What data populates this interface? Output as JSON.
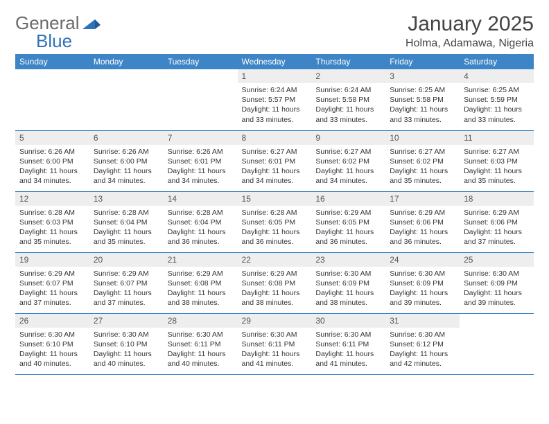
{
  "logo": {
    "part1": "General",
    "part2": "Blue"
  },
  "title": "January 2025",
  "location": "Holma, Adamawa, Nigeria",
  "colors": {
    "header_bg": "#3d85c6",
    "header_text": "#ffffff",
    "daynum_bg": "#eeeeee",
    "row_border": "#3d85c6",
    "body_text": "#333333",
    "logo_blue": "#2f72b8"
  },
  "day_headers": [
    "Sunday",
    "Monday",
    "Tuesday",
    "Wednesday",
    "Thursday",
    "Friday",
    "Saturday"
  ],
  "weeks": [
    [
      null,
      null,
      null,
      {
        "n": "1",
        "sr": "Sunrise: 6:24 AM",
        "ss": "Sunset: 5:57 PM",
        "d1": "Daylight: 11 hours",
        "d2": "and 33 minutes."
      },
      {
        "n": "2",
        "sr": "Sunrise: 6:24 AM",
        "ss": "Sunset: 5:58 PM",
        "d1": "Daylight: 11 hours",
        "d2": "and 33 minutes."
      },
      {
        "n": "3",
        "sr": "Sunrise: 6:25 AM",
        "ss": "Sunset: 5:58 PM",
        "d1": "Daylight: 11 hours",
        "d2": "and 33 minutes."
      },
      {
        "n": "4",
        "sr": "Sunrise: 6:25 AM",
        "ss": "Sunset: 5:59 PM",
        "d1": "Daylight: 11 hours",
        "d2": "and 33 minutes."
      }
    ],
    [
      {
        "n": "5",
        "sr": "Sunrise: 6:26 AM",
        "ss": "Sunset: 6:00 PM",
        "d1": "Daylight: 11 hours",
        "d2": "and 34 minutes."
      },
      {
        "n": "6",
        "sr": "Sunrise: 6:26 AM",
        "ss": "Sunset: 6:00 PM",
        "d1": "Daylight: 11 hours",
        "d2": "and 34 minutes."
      },
      {
        "n": "7",
        "sr": "Sunrise: 6:26 AM",
        "ss": "Sunset: 6:01 PM",
        "d1": "Daylight: 11 hours",
        "d2": "and 34 minutes."
      },
      {
        "n": "8",
        "sr": "Sunrise: 6:27 AM",
        "ss": "Sunset: 6:01 PM",
        "d1": "Daylight: 11 hours",
        "d2": "and 34 minutes."
      },
      {
        "n": "9",
        "sr": "Sunrise: 6:27 AM",
        "ss": "Sunset: 6:02 PM",
        "d1": "Daylight: 11 hours",
        "d2": "and 34 minutes."
      },
      {
        "n": "10",
        "sr": "Sunrise: 6:27 AM",
        "ss": "Sunset: 6:02 PM",
        "d1": "Daylight: 11 hours",
        "d2": "and 35 minutes."
      },
      {
        "n": "11",
        "sr": "Sunrise: 6:27 AM",
        "ss": "Sunset: 6:03 PM",
        "d1": "Daylight: 11 hours",
        "d2": "and 35 minutes."
      }
    ],
    [
      {
        "n": "12",
        "sr": "Sunrise: 6:28 AM",
        "ss": "Sunset: 6:03 PM",
        "d1": "Daylight: 11 hours",
        "d2": "and 35 minutes."
      },
      {
        "n": "13",
        "sr": "Sunrise: 6:28 AM",
        "ss": "Sunset: 6:04 PM",
        "d1": "Daylight: 11 hours",
        "d2": "and 35 minutes."
      },
      {
        "n": "14",
        "sr": "Sunrise: 6:28 AM",
        "ss": "Sunset: 6:04 PM",
        "d1": "Daylight: 11 hours",
        "d2": "and 36 minutes."
      },
      {
        "n": "15",
        "sr": "Sunrise: 6:28 AM",
        "ss": "Sunset: 6:05 PM",
        "d1": "Daylight: 11 hours",
        "d2": "and 36 minutes."
      },
      {
        "n": "16",
        "sr": "Sunrise: 6:29 AM",
        "ss": "Sunset: 6:05 PM",
        "d1": "Daylight: 11 hours",
        "d2": "and 36 minutes."
      },
      {
        "n": "17",
        "sr": "Sunrise: 6:29 AM",
        "ss": "Sunset: 6:06 PM",
        "d1": "Daylight: 11 hours",
        "d2": "and 36 minutes."
      },
      {
        "n": "18",
        "sr": "Sunrise: 6:29 AM",
        "ss": "Sunset: 6:06 PM",
        "d1": "Daylight: 11 hours",
        "d2": "and 37 minutes."
      }
    ],
    [
      {
        "n": "19",
        "sr": "Sunrise: 6:29 AM",
        "ss": "Sunset: 6:07 PM",
        "d1": "Daylight: 11 hours",
        "d2": "and 37 minutes."
      },
      {
        "n": "20",
        "sr": "Sunrise: 6:29 AM",
        "ss": "Sunset: 6:07 PM",
        "d1": "Daylight: 11 hours",
        "d2": "and 37 minutes."
      },
      {
        "n": "21",
        "sr": "Sunrise: 6:29 AM",
        "ss": "Sunset: 6:08 PM",
        "d1": "Daylight: 11 hours",
        "d2": "and 38 minutes."
      },
      {
        "n": "22",
        "sr": "Sunrise: 6:29 AM",
        "ss": "Sunset: 6:08 PM",
        "d1": "Daylight: 11 hours",
        "d2": "and 38 minutes."
      },
      {
        "n": "23",
        "sr": "Sunrise: 6:30 AM",
        "ss": "Sunset: 6:09 PM",
        "d1": "Daylight: 11 hours",
        "d2": "and 38 minutes."
      },
      {
        "n": "24",
        "sr": "Sunrise: 6:30 AM",
        "ss": "Sunset: 6:09 PM",
        "d1": "Daylight: 11 hours",
        "d2": "and 39 minutes."
      },
      {
        "n": "25",
        "sr": "Sunrise: 6:30 AM",
        "ss": "Sunset: 6:09 PM",
        "d1": "Daylight: 11 hours",
        "d2": "and 39 minutes."
      }
    ],
    [
      {
        "n": "26",
        "sr": "Sunrise: 6:30 AM",
        "ss": "Sunset: 6:10 PM",
        "d1": "Daylight: 11 hours",
        "d2": "and 40 minutes."
      },
      {
        "n": "27",
        "sr": "Sunrise: 6:30 AM",
        "ss": "Sunset: 6:10 PM",
        "d1": "Daylight: 11 hours",
        "d2": "and 40 minutes."
      },
      {
        "n": "28",
        "sr": "Sunrise: 6:30 AM",
        "ss": "Sunset: 6:11 PM",
        "d1": "Daylight: 11 hours",
        "d2": "and 40 minutes."
      },
      {
        "n": "29",
        "sr": "Sunrise: 6:30 AM",
        "ss": "Sunset: 6:11 PM",
        "d1": "Daylight: 11 hours",
        "d2": "and 41 minutes."
      },
      {
        "n": "30",
        "sr": "Sunrise: 6:30 AM",
        "ss": "Sunset: 6:11 PM",
        "d1": "Daylight: 11 hours",
        "d2": "and 41 minutes."
      },
      {
        "n": "31",
        "sr": "Sunrise: 6:30 AM",
        "ss": "Sunset: 6:12 PM",
        "d1": "Daylight: 11 hours",
        "d2": "and 42 minutes."
      },
      null
    ]
  ]
}
